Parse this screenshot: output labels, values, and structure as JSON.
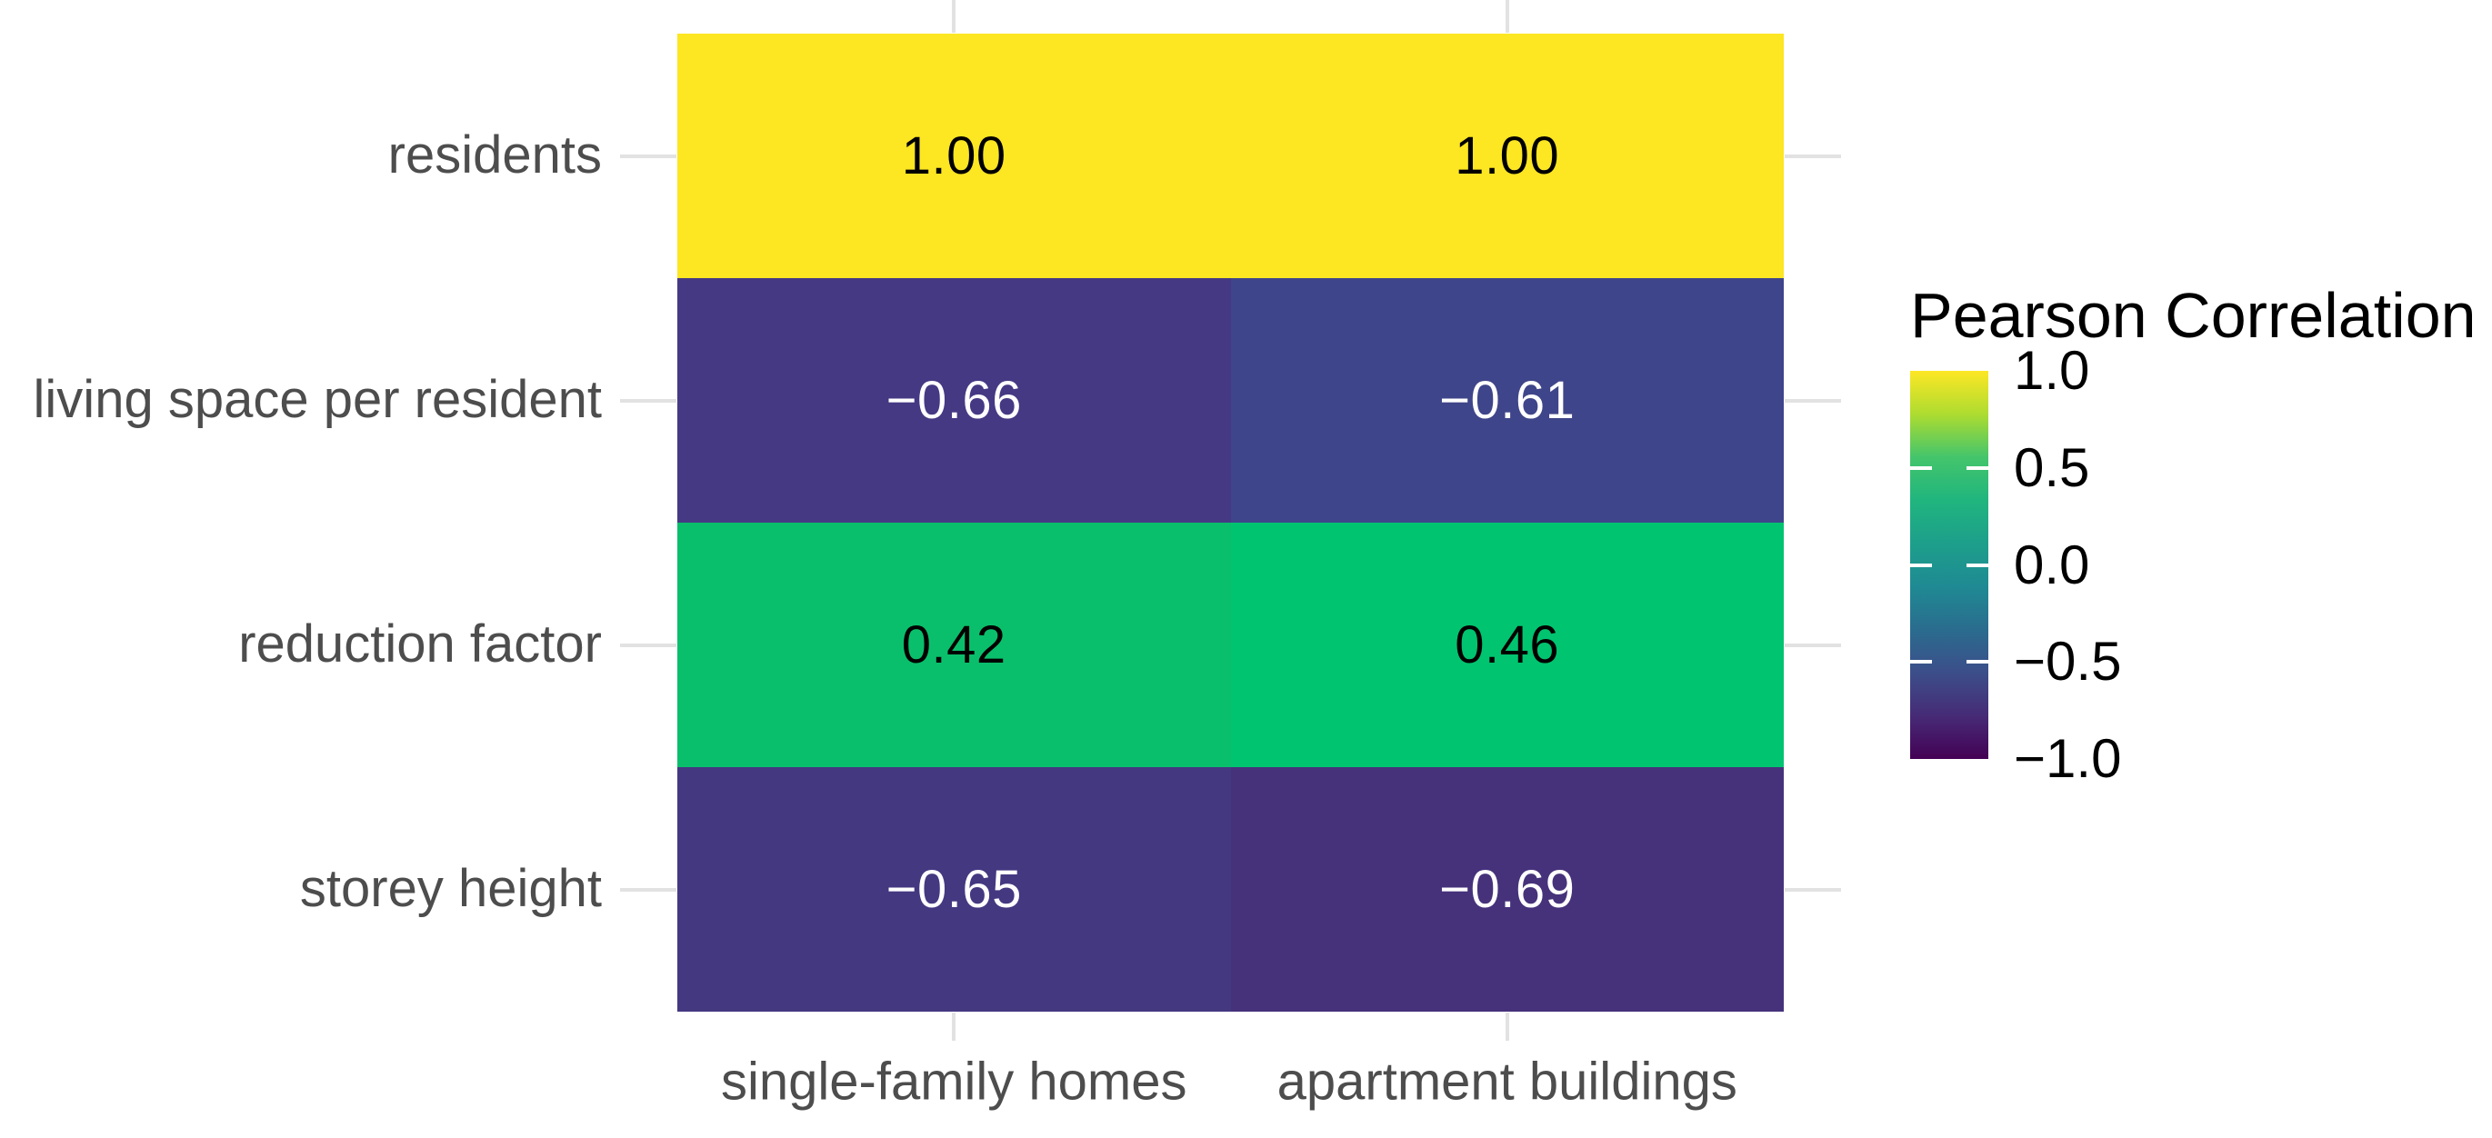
{
  "figure": {
    "background": "#ffffff",
    "axis_text_color": "#4d4d4d",
    "axis_tick_color": "#e2e2e2"
  },
  "chart_data": {
    "type": "heatmap",
    "colormap": "viridis",
    "x_categories": [
      "single-family homes",
      "apartment buildings"
    ],
    "y_categories": [
      "residents",
      "living space per resident",
      "reduction factor",
      "storey height"
    ],
    "values": [
      [
        1.0,
        1.0
      ],
      [
        -0.66,
        -0.61
      ],
      [
        0.42,
        0.46
      ],
      [
        -0.65,
        -0.69
      ]
    ],
    "cell_labels": [
      [
        "1.00",
        "1.00"
      ],
      [
        "−0.66",
        "−0.61"
      ],
      [
        "0.42",
        "0.46"
      ],
      [
        "−0.65",
        "−0.69"
      ]
    ],
    "cell_colors": [
      [
        "#FDE622",
        "#FDE622"
      ],
      [
        "#453984",
        "#3F458A"
      ],
      [
        "#0ABF6B",
        "#00C46F"
      ],
      [
        "#443881",
        "#46327B"
      ]
    ],
    "cell_text_colors": [
      [
        "#000000",
        "#000000"
      ],
      [
        "#FFFFFF",
        "#FFFFFF"
      ],
      [
        "#000000",
        "#000000"
      ],
      [
        "#FFFFFF",
        "#FFFFFF"
      ]
    ],
    "grid": "off",
    "xlabel": "",
    "ylabel": "",
    "legend": {
      "title": "Pearson Correlation",
      "position": "right",
      "range": [
        -1.0,
        1.0
      ],
      "tick_values": [
        1.0,
        0.5,
        0.0,
        -0.5,
        -1.0
      ],
      "tick_labels": [
        "1.0",
        "0.5",
        "0.0",
        "−0.5",
        "−1.0"
      ],
      "inner_tick_values": [
        0.5,
        0.0,
        -0.5
      ],
      "gradient_stops": [
        "#FDE725",
        "#AEDC30",
        "#44C56B",
        "#20B57E",
        "#1D9F8B",
        "#1F8A93",
        "#2A6C8E",
        "#3C4E8A",
        "#462B77",
        "#440154"
      ]
    }
  }
}
